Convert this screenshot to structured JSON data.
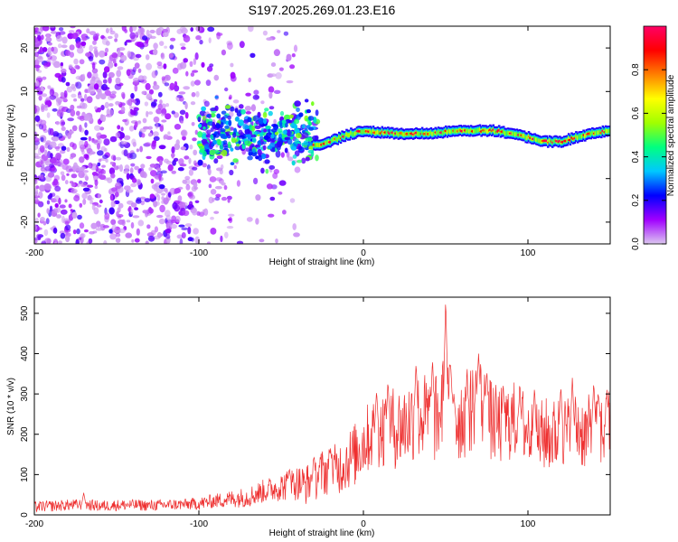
{
  "title": "S197.2025.269.01.23.E16",
  "chart_data": [
    {
      "type": "heatmap",
      "name": "spectrogram",
      "xlabel": "Height of straight line (km)",
      "ylabel": "Frequency (Hz)",
      "xlim": [
        -200,
        150
      ],
      "ylim": [
        -25,
        25
      ],
      "xticks": [
        -200,
        -100,
        0,
        100
      ],
      "xtick_labels": [
        "-200",
        "-100",
        "0",
        "100"
      ],
      "yticks": [
        -20,
        -10,
        0,
        10,
        20
      ],
      "ytick_labels": [
        "-20",
        "-10",
        "0",
        "10",
        "20"
      ],
      "ridge": {
        "description": "narrow-band signal near 0 Hz",
        "x": [
          -30,
          -20,
          -10,
          0,
          20,
          40,
          60,
          80,
          90,
          100,
          110,
          120,
          130,
          140,
          150
        ],
        "y": [
          -2.5,
          -1.5,
          0,
          1,
          0.3,
          0.4,
          1,
          1,
          0.3,
          -0.5,
          -1.5,
          -1.5,
          -0.5,
          0.5,
          1
        ]
      },
      "colorbar": {
        "label": "Normalized spectral amplitude",
        "range": [
          0,
          1
        ],
        "ticks": [
          0.0,
          0.2,
          0.4,
          0.6,
          0.8
        ],
        "tick_labels": [
          "0.0",
          "0.2",
          "0.4",
          "0.6",
          "0.8"
        ],
        "colors": [
          "#dcc8f0",
          "#a000ff",
          "#0000ff",
          "#00c8ff",
          "#00ff80",
          "#a0ff00",
          "#ffff00",
          "#ff8000",
          "#ff0000",
          "#ff0066"
        ]
      }
    },
    {
      "type": "line",
      "name": "snr",
      "xlabel": "Height of straight line (km)",
      "ylabel": "SNR (10 * v/v)",
      "xlim": [
        -200,
        150
      ],
      "ylim": [
        0,
        540
      ],
      "xticks": [
        -200,
        -100,
        0,
        100
      ],
      "xtick_labels": [
        "-200",
        "-100",
        "0",
        "100"
      ],
      "yticks": [
        0,
        100,
        200,
        300,
        400,
        500
      ],
      "ytick_labels": [
        "0",
        "100",
        "200",
        "300",
        "400",
        "500"
      ],
      "color": "#ee3030",
      "x": [
        -200,
        -190,
        -180,
        -170,
        -160,
        -150,
        -140,
        -130,
        -120,
        -110,
        -100,
        -90,
        -80,
        -70,
        -60,
        -55,
        -50,
        -45,
        -40,
        -35,
        -30,
        -25,
        -20,
        -15,
        -10,
        -5,
        0,
        5,
        10,
        15,
        20,
        25,
        30,
        35,
        40,
        45,
        50,
        55,
        60,
        65,
        70,
        75,
        80,
        85,
        90,
        95,
        100,
        105,
        110,
        115,
        120,
        125,
        130,
        135,
        140,
        145,
        150
      ],
      "y": [
        20,
        22,
        24,
        26,
        22,
        24,
        25,
        23,
        25,
        26,
        28,
        35,
        40,
        45,
        60,
        65,
        70,
        75,
        80,
        75,
        90,
        105,
        110,
        115,
        135,
        150,
        180,
        200,
        210,
        225,
        215,
        225,
        240,
        245,
        240,
        235,
        300,
        230,
        245,
        260,
        300,
        245,
        225,
        220,
        235,
        230,
        210,
        185,
        200,
        195,
        210,
        205,
        215,
        200,
        215,
        205,
        220
      ],
      "noise_amp": [
        14,
        14,
        14,
        14,
        14,
        14,
        14,
        14,
        14,
        14,
        16,
        18,
        22,
        26,
        30,
        32,
        36,
        40,
        44,
        50,
        55,
        60,
        62,
        66,
        75,
        80,
        85,
        90,
        95,
        100,
        105,
        105,
        110,
        112,
        112,
        112,
        120,
        112,
        112,
        110,
        110,
        105,
        100,
        98,
        100,
        98,
        95,
        90,
        95,
        92,
        95,
        92,
        95,
        92,
        95,
        92,
        95
      ],
      "spikes": [
        [
          -170,
          55
        ],
        [
          -45,
          115
        ],
        [
          -30,
          130
        ],
        [
          -20,
          165
        ],
        [
          8,
          310
        ],
        [
          15,
          325
        ],
        [
          32,
          380
        ],
        [
          42,
          390
        ],
        [
          50,
          540
        ],
        [
          53,
          380
        ],
        [
          55,
          300
        ],
        [
          63,
          330
        ],
        [
          70,
          400
        ],
        [
          75,
          360
        ],
        [
          85,
          320
        ],
        [
          95,
          300
        ],
        [
          104,
          320
        ],
        [
          120,
          320
        ],
        [
          127,
          340
        ],
        [
          140,
          330
        ],
        [
          143,
          300
        ],
        [
          148,
          310
        ]
      ]
    }
  ]
}
